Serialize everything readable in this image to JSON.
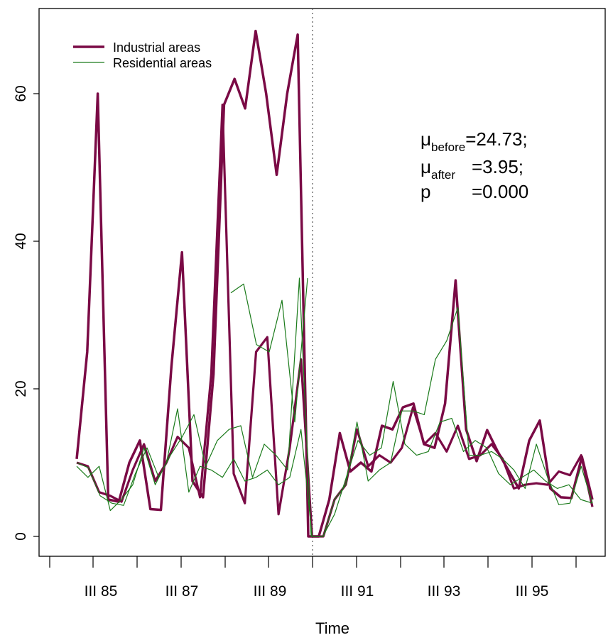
{
  "chart_data": {
    "type": "line",
    "xlabel": "Time",
    "ylabel": "",
    "x_ticks": [
      "III 85",
      "III 87",
      "III 89",
      "III 91",
      "III 93",
      "III 95"
    ],
    "y_ticks": [
      "0",
      "20",
      "40",
      "60"
    ],
    "ylim": [
      -3,
      70
    ],
    "grid": false,
    "legend_position": "top-left",
    "intervention_at": "1990 Q3 (dotted vertical line)",
    "colors": {
      "industrial": "#7a0a45",
      "residential": "#1a7a1a"
    },
    "legend": [
      {
        "label": "Industrial areas",
        "color": "#7a0a45",
        "width": 3.5
      },
      {
        "label": "Residential areas",
        "color": "#1a7a1a",
        "width": 1.2
      }
    ],
    "stats": {
      "mu_before": {
        "symbol": "μ",
        "sub": "before",
        "value": "=24.73;"
      },
      "mu_after": {
        "symbol": "μ",
        "sub": "after",
        "value": "=3.95;"
      },
      "p": {
        "symbol": "p",
        "value": "=0.000"
      }
    },
    "series": [
      {
        "name": "Industrial areas",
        "group": "industrial",
        "points": [
          [
            0,
            10.5
          ],
          [
            1,
            25
          ],
          [
            2,
            60
          ],
          [
            3,
            5
          ],
          [
            4,
            4.7
          ],
          [
            5,
            10
          ],
          [
            6,
            13
          ],
          [
            7,
            3.7
          ],
          [
            8,
            3.6
          ],
          [
            9,
            23
          ],
          [
            10,
            38.5
          ],
          [
            11,
            7.5
          ],
          [
            12,
            5.3
          ],
          [
            13,
            22
          ],
          [
            14,
            58.5
          ],
          [
            15,
            62
          ],
          [
            16,
            58
          ],
          [
            17,
            68.5
          ],
          [
            18,
            60
          ],
          [
            19,
            49
          ],
          [
            20,
            60
          ],
          [
            21,
            68
          ],
          [
            22,
            0
          ],
          [
            23,
            0
          ],
          [
            24,
            5
          ],
          [
            25,
            14
          ],
          [
            26,
            8.8
          ],
          [
            27,
            10
          ],
          [
            28,
            8.8
          ],
          [
            29,
            15
          ],
          [
            30,
            14.5
          ],
          [
            31,
            17.5
          ],
          [
            32,
            18
          ],
          [
            33,
            12.5
          ],
          [
            34,
            12
          ],
          [
            35,
            18
          ],
          [
            36,
            34.7
          ],
          [
            37,
            14.5
          ],
          [
            38,
            10.2
          ],
          [
            39,
            14.4
          ],
          [
            40,
            11.5
          ],
          [
            41,
            9
          ],
          [
            42,
            6.5
          ],
          [
            43,
            13
          ],
          [
            44,
            15.7
          ],
          [
            45,
            6.5
          ],
          [
            46,
            5.3
          ],
          [
            47,
            5.2
          ],
          [
            48,
            10.8
          ],
          [
            49,
            5
          ]
        ]
      },
      {
        "name": "Industrial areas",
        "group": "industrial",
        "points": [
          [
            0,
            10
          ],
          [
            1,
            9.5
          ],
          [
            2,
            6
          ],
          [
            3,
            5.5
          ],
          [
            4,
            4.7
          ],
          [
            5,
            9
          ],
          [
            6,
            12.5
          ],
          [
            7,
            7.5
          ],
          [
            8,
            10
          ],
          [
            9,
            13.5
          ],
          [
            10,
            12
          ],
          [
            11,
            5.3
          ],
          [
            12,
            22
          ],
          [
            13,
            58.5
          ],
          [
            14,
            8.5
          ],
          [
            15,
            4.5
          ],
          [
            16,
            25
          ],
          [
            17,
            27
          ],
          [
            18,
            3
          ],
          [
            19,
            12
          ],
          [
            20,
            24
          ],
          [
            21,
            0
          ],
          [
            22,
            0
          ],
          [
            23,
            5
          ],
          [
            24,
            7
          ],
          [
            25,
            14.5
          ],
          [
            26,
            9.5
          ],
          [
            27,
            11
          ],
          [
            28,
            10
          ],
          [
            29,
            12
          ],
          [
            30,
            17.5
          ],
          [
            31,
            12.5
          ],
          [
            32,
            14
          ],
          [
            33,
            11.5
          ],
          [
            34,
            15
          ],
          [
            35,
            10.5
          ],
          [
            36,
            11
          ],
          [
            37,
            12.5
          ],
          [
            38,
            10.5
          ],
          [
            39,
            6.5
          ],
          [
            40,
            7
          ],
          [
            41,
            7.2
          ],
          [
            42,
            7
          ],
          [
            43,
            8.8
          ],
          [
            44,
            8.3
          ],
          [
            45,
            11
          ],
          [
            46,
            4
          ]
        ]
      },
      {
        "name": "Residential areas",
        "group": "residential",
        "points": [
          [
            0,
            9.5
          ],
          [
            1,
            8
          ],
          [
            2,
            9.5
          ],
          [
            3,
            3.5
          ],
          [
            4,
            5
          ],
          [
            5,
            7
          ],
          [
            6,
            12
          ],
          [
            7,
            7
          ],
          [
            8,
            10
          ],
          [
            9,
            17.3
          ],
          [
            10,
            6
          ],
          [
            11,
            9.5
          ],
          [
            12,
            9
          ],
          [
            13,
            8
          ],
          [
            14,
            10.5
          ],
          [
            15,
            7.5
          ],
          [
            16,
            8
          ],
          [
            17,
            9
          ],
          [
            18,
            7
          ],
          [
            19,
            8
          ],
          [
            20,
            14.5
          ],
          [
            21,
            0
          ],
          [
            22,
            0
          ],
          [
            23,
            5
          ],
          [
            24,
            7
          ],
          [
            25,
            15.5
          ],
          [
            26,
            7.5
          ],
          [
            27,
            9
          ],
          [
            28,
            10
          ],
          [
            29,
            17
          ],
          [
            30,
            17
          ],
          [
            31,
            16.5
          ],
          [
            32,
            24
          ],
          [
            33,
            26.5
          ],
          [
            34,
            31
          ],
          [
            35,
            11
          ],
          [
            36,
            11
          ],
          [
            37,
            11.5
          ],
          [
            38,
            10.5
          ],
          [
            39,
            9
          ],
          [
            40,
            6.5
          ],
          [
            41,
            12.5
          ],
          [
            42,
            8
          ],
          [
            43,
            4.3
          ],
          [
            44,
            4.5
          ],
          [
            45,
            9.5
          ],
          [
            46,
            4.5
          ]
        ]
      },
      {
        "name": "Residential areas",
        "group": "residential",
        "points": [
          [
            0,
            10
          ],
          [
            1,
            9.3
          ],
          [
            2,
            5.5
          ],
          [
            3,
            4.5
          ],
          [
            4,
            4.2
          ],
          [
            5,
            8.5
          ],
          [
            6,
            12
          ],
          [
            7,
            8
          ],
          [
            8,
            11
          ],
          [
            9,
            13.5
          ],
          [
            10,
            16.5
          ],
          [
            11,
            9.5
          ],
          [
            12,
            13
          ],
          [
            13,
            14.5
          ],
          [
            14,
            15
          ],
          [
            15,
            8
          ],
          [
            16,
            12.5
          ],
          [
            17,
            11
          ],
          [
            18,
            9
          ],
          [
            19,
            35
          ],
          [
            20,
            0
          ],
          [
            21,
            0
          ],
          [
            22,
            3
          ],
          [
            23,
            8
          ],
          [
            24,
            13
          ],
          [
            25,
            11
          ],
          [
            26,
            12
          ],
          [
            27,
            21
          ],
          [
            28,
            12.5
          ],
          [
            29,
            11
          ],
          [
            30,
            11.5
          ],
          [
            31,
            15.5
          ],
          [
            32,
            16
          ],
          [
            33,
            11.5
          ],
          [
            34,
            13
          ],
          [
            35,
            12
          ],
          [
            36,
            8.5
          ],
          [
            37,
            7
          ],
          [
            38,
            8
          ],
          [
            39,
            9
          ],
          [
            40,
            7.5
          ],
          [
            41,
            6.5
          ],
          [
            42,
            7
          ],
          [
            43,
            5
          ],
          [
            44,
            4.5
          ]
        ]
      },
      {
        "name": "Residential areas",
        "group": "residential",
        "points": [
          [
            0,
            33
          ],
          [
            1,
            34.2
          ],
          [
            2,
            26
          ],
          [
            3,
            25
          ],
          [
            4,
            32
          ],
          [
            5,
            15.5
          ],
          [
            6,
            35
          ]
        ]
      }
    ]
  }
}
